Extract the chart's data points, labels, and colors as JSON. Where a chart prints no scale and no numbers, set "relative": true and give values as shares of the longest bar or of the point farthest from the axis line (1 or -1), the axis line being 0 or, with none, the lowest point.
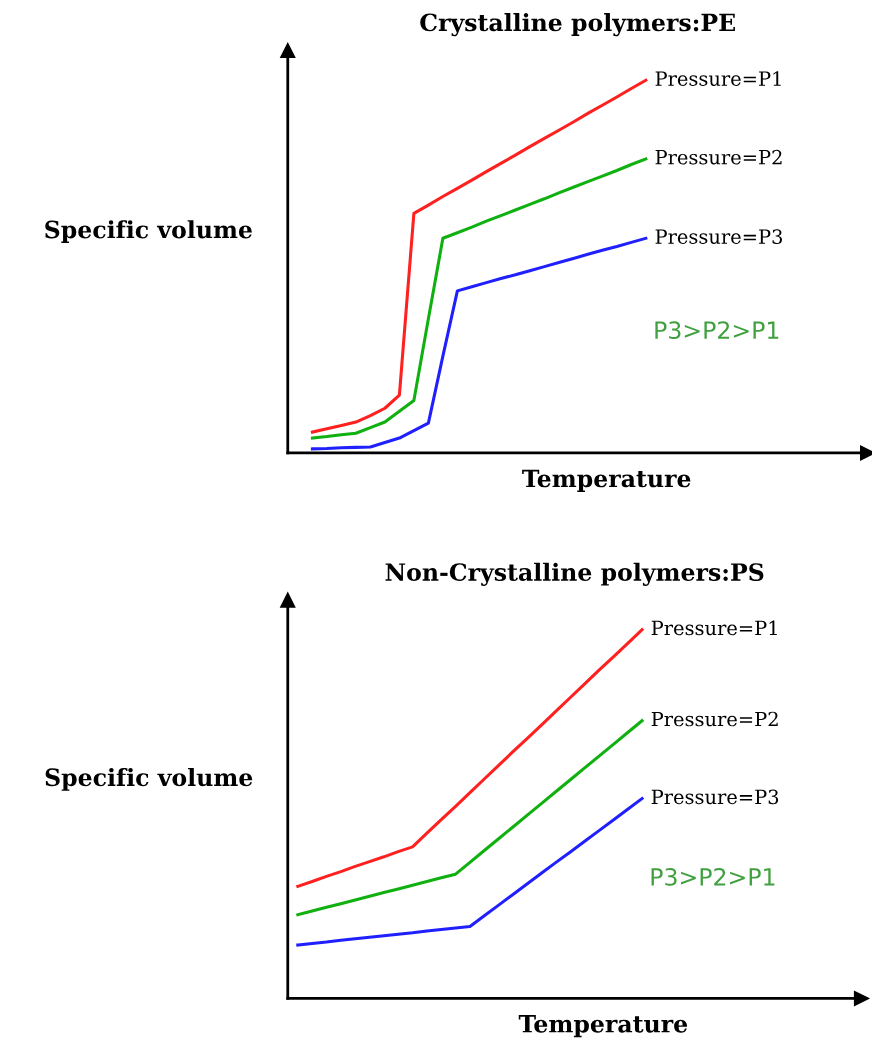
{
  "chart_data": [
    {
      "type": "line",
      "title": "Crystalline polymers:PE",
      "xlabel": "Temperature",
      "ylabel": "Specific volume",
      "relative": true,
      "annotations": [
        "P3>P2>P1"
      ],
      "categories": [
        null,
        null,
        null,
        null,
        null,
        null,
        null,
        null,
        null,
        null,
        null,
        null,
        null,
        null,
        null,
        null,
        null,
        null,
        null,
        null,
        null,
        null,
        null,
        null
      ],
      "series": [
        {
          "name": "Pressure=P1",
          "color": "#ff2020",
          "values": [
            0.056,
            0.065,
            0.074,
            0.083,
            0.1,
            0.12,
            0.155,
            0.643,
            0.665,
            0.688,
            0.71,
            0.732,
            0.755,
            0.777,
            0.799,
            0.822,
            0.844,
            0.866,
            0.888,
            0.911,
            0.933,
            0.955,
            0.978,
            1
          ]
        },
        {
          "name": "Pressure=P2",
          "color": "#10b010",
          "values": [
            0.04,
            0.044,
            0.049,
            0.053,
            0.068,
            0.083,
            0.112,
            0.141,
            0.36,
            0.576,
            0.591,
            0.606,
            0.622,
            0.637,
            0.652,
            0.667,
            0.682,
            0.698,
            0.713,
            0.728,
            0.743,
            0.758,
            0.774,
            0.789
          ]
        },
        {
          "name": "Pressure=P3",
          "color": "#2020ff",
          "values": [
            0.011,
            0.012,
            0.014,
            0.015,
            0.016,
            0.028,
            0.04,
            0.06,
            0.08,
            0.26,
            0.435,
            0.446,
            0.457,
            0.468,
            0.478,
            0.489,
            0.5,
            0.511,
            0.522,
            0.533,
            0.544,
            0.554,
            0.565,
            0.576
          ]
        }
      ]
    },
    {
      "type": "line",
      "title": "Non-Crystalline polymers:PS",
      "xlabel": "Temperature",
      "ylabel": "Specific volume",
      "relative": true,
      "annotations": [
        "P3>P2>P1"
      ],
      "categories": [
        null,
        null,
        null,
        null,
        null,
        null,
        null,
        null,
        null,
        null,
        null,
        null,
        null,
        null,
        null,
        null,
        null,
        null,
        null,
        null,
        null,
        null,
        null,
        null,
        null
      ],
      "series": [
        {
          "name": "Pressure=P1",
          "color": "#ff2020",
          "values": [
            0.304,
            0.317,
            0.331,
            0.344,
            0.358,
            0.371,
            0.384,
            0.398,
            0.411,
            0.448,
            0.485,
            0.521,
            0.558,
            0.595,
            0.632,
            0.669,
            0.705,
            0.742,
            0.779,
            0.816,
            0.853,
            0.89,
            0.926,
            0.963,
            1
          ]
        },
        {
          "name": "Pressure=P2",
          "color": "#10b010",
          "values": [
            0.227,
            0.237,
            0.247,
            0.257,
            0.267,
            0.277,
            0.287,
            0.297,
            0.307,
            0.317,
            0.327,
            0.337,
            0.369,
            0.401,
            0.433,
            0.465,
            0.497,
            0.529,
            0.561,
            0.593,
            0.625,
            0.657,
            0.689,
            0.721,
            0.753
          ]
        },
        {
          "name": "Pressure=P3",
          "color": "#2020ff",
          "values": [
            0.145,
            0.149,
            0.153,
            0.158,
            0.162,
            0.166,
            0.17,
            0.174,
            0.178,
            0.183,
            0.187,
            0.191,
            0.195,
            0.224,
            0.253,
            0.282,
            0.311,
            0.34,
            0.369,
            0.397,
            0.426,
            0.455,
            0.484,
            0.513,
            0.542
          ]
        }
      ]
    }
  ]
}
